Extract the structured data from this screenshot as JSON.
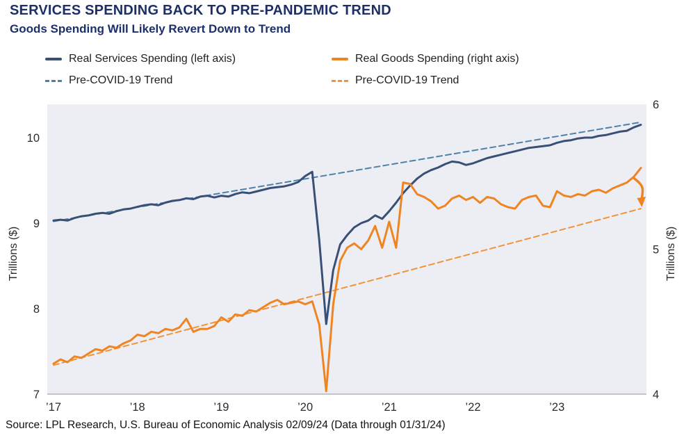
{
  "header": {
    "title": "SERVICES SPENDING BACK TO PRE-PANDEMIC TREND",
    "subtitle": "Goods Spending Will Likely Revert Down to Trend"
  },
  "source_line": "Source: LPL Research, U.S. Bureau of Economic Analysis 02/09/24 (Data through 01/31/24)",
  "colors": {
    "title_navy": "#1c2f69",
    "services": "#394f76",
    "services_trend": "#4d82a8",
    "goods": "#ee8522",
    "goods_trend": "#f19338",
    "plot_bg": "#edeef4",
    "axis_line": "#b3b3bb",
    "tick_text": "#2b2b2b",
    "source_text": "#111111"
  },
  "legend": [
    {
      "label": "Real Services Spending (left axis)",
      "color": "#394f76",
      "dash": false
    },
    {
      "label": "Real Goods Spending (right axis)",
      "color": "#ee8522",
      "dash": false
    },
    {
      "label": "Pre-COVID-19 Trend",
      "color": "#4d82a8",
      "dash": true
    },
    {
      "label": "Pre-COVID-19 Trend",
      "color": "#f19338",
      "dash": true
    }
  ],
  "chart_data": {
    "type": "line",
    "x_unit": "month",
    "x_start": "2017-01",
    "x_end": "2024-01",
    "x_tick_labels": [
      "’17",
      "’18",
      "’19",
      "’20",
      "’21",
      "’22",
      "’23"
    ],
    "x_tick_months": [
      0,
      12,
      24,
      36,
      48,
      60,
      72
    ],
    "grid": false,
    "legend_position": "top",
    "y_left": {
      "label": "Trillions ($)",
      "ticks": [
        10,
        9,
        8,
        7
      ],
      "min": 7,
      "max": 10.39
    },
    "y_right": {
      "label": "Trillions ($)",
      "ticks": [
        6,
        5,
        4
      ],
      "min": 4,
      "max": 6
    },
    "series": [
      {
        "name": "Real Services Spending (left axis)",
        "axis": "left",
        "style": "solid",
        "color": "#394f76",
        "values": [
          9.03,
          9.04,
          9.03,
          9.06,
          9.08,
          9.09,
          9.11,
          9.12,
          9.11,
          9.14,
          9.16,
          9.17,
          9.19,
          9.21,
          9.22,
          9.21,
          9.24,
          9.26,
          9.27,
          9.29,
          9.28,
          9.31,
          9.32,
          9.3,
          9.32,
          9.31,
          9.34,
          9.36,
          9.35,
          9.37,
          9.39,
          9.41,
          9.42,
          9.43,
          9.45,
          9.48,
          9.55,
          9.6,
          8.8,
          7.82,
          8.45,
          8.75,
          8.86,
          8.95,
          9.0,
          9.03,
          9.09,
          9.05,
          9.14,
          9.24,
          9.35,
          9.44,
          9.52,
          9.58,
          9.62,
          9.65,
          9.69,
          9.72,
          9.71,
          9.68,
          9.7,
          9.73,
          9.76,
          9.78,
          9.8,
          9.82,
          9.84,
          9.86,
          9.88,
          9.89,
          9.9,
          9.91,
          9.94,
          9.96,
          9.97,
          9.99,
          10.0,
          10.0,
          10.02,
          10.03,
          10.05,
          10.07,
          10.08,
          10.12,
          10.15
        ]
      },
      {
        "name": "Real Goods Spending (right axis)",
        "axis": "right",
        "style": "solid",
        "color": "#ee8522",
        "values": [
          4.21,
          4.24,
          4.22,
          4.26,
          4.25,
          4.28,
          4.31,
          4.3,
          4.33,
          4.32,
          4.35,
          4.37,
          4.41,
          4.4,
          4.43,
          4.42,
          4.45,
          4.44,
          4.46,
          4.52,
          4.43,
          4.45,
          4.45,
          4.47,
          4.53,
          4.5,
          4.55,
          4.54,
          4.58,
          4.57,
          4.6,
          4.63,
          4.65,
          4.62,
          4.63,
          4.64,
          4.62,
          4.64,
          4.48,
          4.02,
          4.62,
          4.92,
          5.01,
          5.04,
          5.0,
          5.06,
          5.16,
          5.01,
          5.19,
          5.01,
          5.46,
          5.45,
          5.38,
          5.36,
          5.33,
          5.28,
          5.3,
          5.35,
          5.37,
          5.34,
          5.36,
          5.32,
          5.36,
          5.35,
          5.31,
          5.29,
          5.28,
          5.34,
          5.36,
          5.37,
          5.3,
          5.29,
          5.4,
          5.37,
          5.36,
          5.38,
          5.37,
          5.4,
          5.41,
          5.39,
          5.42,
          5.44,
          5.46,
          5.5,
          5.56
        ]
      },
      {
        "name": "Services Pre-COVID-19 Trend",
        "axis": "left",
        "style": "dashed",
        "color": "#4d82a8",
        "x": [
          0,
          84
        ],
        "values": [
          9.02,
          10.18
        ]
      },
      {
        "name": "Goods Pre-COVID-19 Trend",
        "axis": "right",
        "style": "dashed",
        "color": "#f19338",
        "x": [
          0,
          84
        ],
        "values": [
          4.2,
          5.28
        ]
      }
    ],
    "annotation_arrow": {
      "color": "#ee8522",
      "at_month": 83,
      "from_value": 5.5,
      "to_value": 5.3,
      "axis": "right"
    }
  }
}
